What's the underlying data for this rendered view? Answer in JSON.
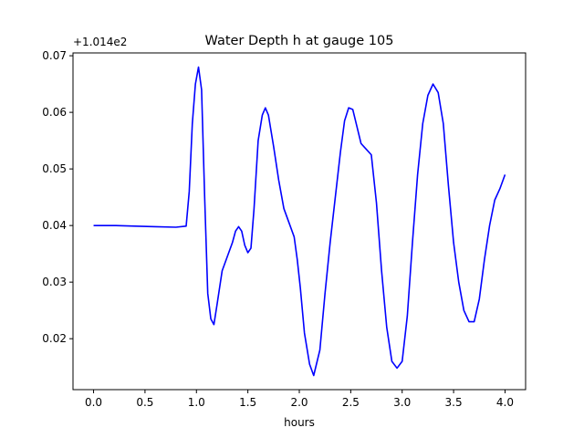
{
  "chart_data": {
    "type": "line",
    "title": "Water Depth h at gauge 105",
    "xlabel": "hours",
    "ylabel": "",
    "y_offset_label": "+1.014e2",
    "xlim": [
      -0.2,
      4.2
    ],
    "ylim": [
      0.011,
      0.0705
    ],
    "x_ticks": [
      0.0,
      0.5,
      1.0,
      1.5,
      2.0,
      2.5,
      3.0,
      3.5,
      4.0
    ],
    "x_tick_labels": [
      "0.0",
      "0.5",
      "1.0",
      "1.5",
      "2.0",
      "2.5",
      "3.0",
      "3.5",
      "4.0"
    ],
    "y_ticks": [
      0.02,
      0.03,
      0.04,
      0.05,
      0.06,
      0.07
    ],
    "y_tick_labels": [
      "0.02",
      "0.03",
      "0.04",
      "0.05",
      "0.06",
      "0.07"
    ],
    "grid": false,
    "series": [
      {
        "color": "#0000ff",
        "x": [
          0.0,
          0.2,
          0.4,
          0.6,
          0.8,
          0.9,
          0.93,
          0.96,
          0.99,
          1.02,
          1.05,
          1.08,
          1.11,
          1.14,
          1.17,
          1.2,
          1.25,
          1.3,
          1.35,
          1.38,
          1.41,
          1.44,
          1.47,
          1.5,
          1.53,
          1.56,
          1.6,
          1.64,
          1.67,
          1.7,
          1.75,
          1.8,
          1.85,
          1.9,
          1.95,
          1.98,
          2.01,
          2.05,
          2.1,
          2.14,
          2.2,
          2.25,
          2.3,
          2.35,
          2.4,
          2.44,
          2.48,
          2.52,
          2.56,
          2.6,
          2.65,
          2.7,
          2.75,
          2.8,
          2.85,
          2.9,
          2.95,
          3.0,
          3.05,
          3.1,
          3.15,
          3.2,
          3.25,
          3.3,
          3.35,
          3.4,
          3.45,
          3.5,
          3.55,
          3.6,
          3.65,
          3.7,
          3.75,
          3.8,
          3.85,
          3.9,
          3.95,
          4.0
        ],
        "y": [
          0.04,
          0.04,
          0.0399,
          0.0398,
          0.0397,
          0.0399,
          0.046,
          0.058,
          0.065,
          0.068,
          0.064,
          0.045,
          0.028,
          0.0235,
          0.0225,
          0.026,
          0.032,
          0.0345,
          0.037,
          0.039,
          0.0398,
          0.039,
          0.0365,
          0.0352,
          0.036,
          0.043,
          0.055,
          0.0595,
          0.0608,
          0.0595,
          0.054,
          0.048,
          0.043,
          0.0405,
          0.038,
          0.034,
          0.029,
          0.021,
          0.0155,
          0.0135,
          0.018,
          0.028,
          0.037,
          0.045,
          0.053,
          0.0585,
          0.0608,
          0.0605,
          0.0575,
          0.0545,
          0.0535,
          0.0525,
          0.044,
          0.032,
          0.022,
          0.016,
          0.0148,
          0.016,
          0.024,
          0.037,
          0.049,
          0.058,
          0.063,
          0.065,
          0.0635,
          0.058,
          0.047,
          0.037,
          0.03,
          0.025,
          0.023,
          0.023,
          0.027,
          0.034,
          0.04,
          0.0445,
          0.0465,
          0.049
        ]
      }
    ]
  }
}
